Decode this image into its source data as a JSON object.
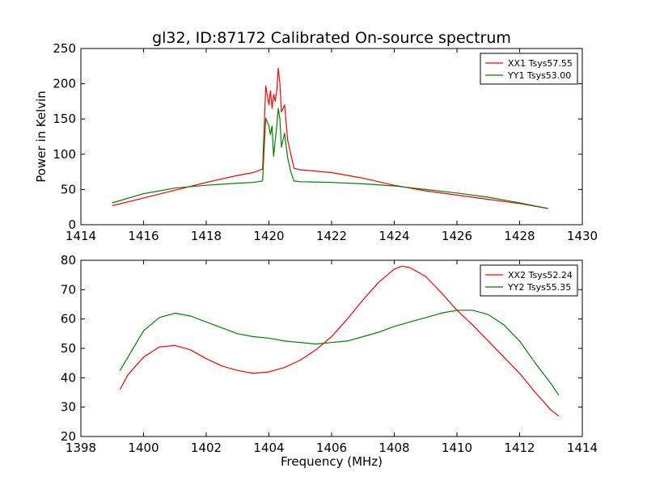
{
  "chart_data": [
    {
      "type": "line",
      "title": "gl32, ID:87172 Calibrated On-source spectrum",
      "xlabel": "",
      "ylabel": "Power in Kelvin",
      "xlim": [
        1414,
        1430
      ],
      "ylim": [
        0,
        250
      ],
      "xticks": [
        "1414",
        "1416",
        "1418",
        "1420",
        "1422",
        "1424",
        "1426",
        "1428",
        "1430"
      ],
      "yticks": [
        "0",
        "50",
        "100",
        "150",
        "200",
        "250"
      ],
      "legend_position": "top-right",
      "series": [
        {
          "name": "XX1 Tsys57.55",
          "color": "#ff0000",
          "x": [
            1415.0,
            1416.0,
            1417.0,
            1418.0,
            1419.0,
            1419.5,
            1419.8,
            1419.85,
            1419.9,
            1420.0,
            1420.05,
            1420.1,
            1420.15,
            1420.2,
            1420.25,
            1420.3,
            1420.35,
            1420.4,
            1420.5,
            1420.6,
            1420.7,
            1420.8,
            1421.0,
            1422.0,
            1423.0,
            1424.0,
            1425.0,
            1426.0,
            1427.0,
            1428.0,
            1428.9
          ],
          "values": [
            27,
            38,
            49,
            60,
            70,
            74,
            79,
            140,
            197,
            170,
            190,
            165,
            185,
            175,
            190,
            222,
            200,
            160,
            170,
            120,
            100,
            80,
            78,
            74,
            66,
            56,
            48,
            42,
            36,
            30,
            23
          ]
        },
        {
          "name": "YY1 Tsys53.00",
          "color": "#007f00",
          "x": [
            1415.0,
            1416.0,
            1417.0,
            1418.0,
            1419.0,
            1419.5,
            1419.8,
            1419.85,
            1419.9,
            1420.0,
            1420.05,
            1420.1,
            1420.15,
            1420.2,
            1420.25,
            1420.3,
            1420.35,
            1420.4,
            1420.5,
            1420.6,
            1420.7,
            1420.8,
            1421.0,
            1422.0,
            1423.0,
            1424.0,
            1425.0,
            1426.0,
            1427.0,
            1428.0,
            1428.9
          ],
          "values": [
            31,
            44,
            52,
            56,
            59,
            60,
            62,
            110,
            151,
            140,
            128,
            140,
            97,
            120,
            140,
            165,
            150,
            110,
            130,
            95,
            75,
            62,
            61,
            60,
            58,
            55,
            50,
            45,
            39,
            31,
            23
          ]
        }
      ]
    },
    {
      "type": "line",
      "title": "",
      "xlabel": "Frequency (MHz)",
      "ylabel": "",
      "xlim": [
        1398,
        1414
      ],
      "ylim": [
        20,
        80
      ],
      "xticks": [
        "1398",
        "1400",
        "1402",
        "1404",
        "1406",
        "1408",
        "1410",
        "1412",
        "1414"
      ],
      "yticks": [
        "20",
        "30",
        "40",
        "50",
        "60",
        "70",
        "80"
      ],
      "legend_position": "top-right",
      "series": [
        {
          "name": "XX2 Tsys52.24",
          "color": "#ff0000",
          "x": [
            1399.25,
            1399.5,
            1400.0,
            1400.5,
            1401.0,
            1401.5,
            1402.0,
            1402.5,
            1403.0,
            1403.5,
            1404.0,
            1404.5,
            1405.0,
            1405.5,
            1406.0,
            1406.5,
            1407.0,
            1407.5,
            1408.0,
            1408.25,
            1408.5,
            1409.0,
            1409.5,
            1410.0,
            1410.5,
            1411.0,
            1411.5,
            1412.0,
            1412.5,
            1413.0,
            1413.25
          ],
          "values": [
            36,
            41,
            47,
            50.5,
            51,
            49.5,
            46.5,
            44,
            42.5,
            41.5,
            42,
            43.5,
            46,
            49.5,
            54,
            60,
            66.5,
            72.5,
            77,
            78,
            77.5,
            74.5,
            69,
            63,
            58,
            52.5,
            47,
            41.5,
            35,
            29,
            27
          ]
        },
        {
          "name": "YY2 Tsys55.35",
          "color": "#007f00",
          "x": [
            1399.25,
            1399.5,
            1400.0,
            1400.5,
            1401.0,
            1401.5,
            1402.0,
            1402.5,
            1403.0,
            1403.5,
            1404.0,
            1404.5,
            1405.0,
            1405.5,
            1406.0,
            1406.5,
            1407.0,
            1407.5,
            1408.0,
            1408.5,
            1409.0,
            1409.5,
            1410.0,
            1410.5,
            1411.0,
            1411.5,
            1412.0,
            1412.5,
            1413.0,
            1413.25
          ],
          "values": [
            42.5,
            47,
            56,
            60.5,
            62,
            61,
            59,
            57,
            55,
            54,
            53.5,
            52.5,
            52,
            51.5,
            52,
            52.5,
            54,
            55.5,
            57.5,
            59,
            60.5,
            62,
            63,
            63,
            61.5,
            58,
            52.5,
            45,
            38,
            34
          ]
        }
      ]
    }
  ]
}
